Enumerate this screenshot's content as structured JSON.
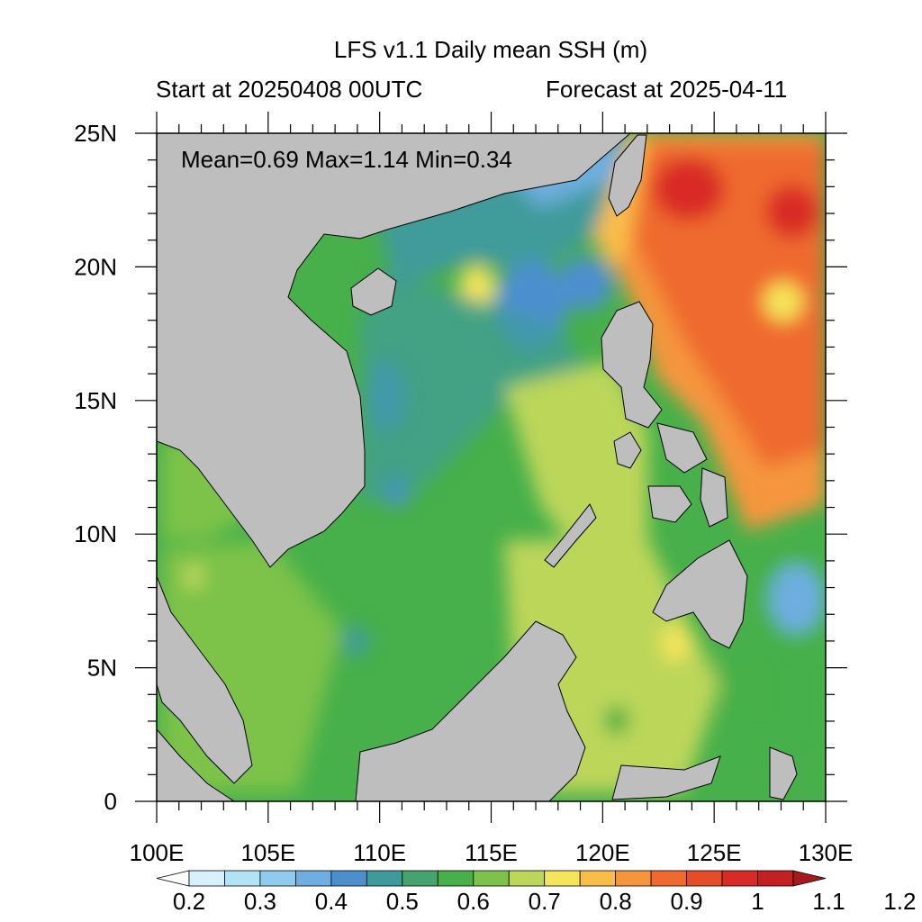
{
  "title": "LFS v1.1 Daily mean SSH (m)",
  "subtitle_left": "Start at 20250408 00UTC",
  "subtitle_right": "Forecast at 2025-04-11",
  "stats": "Mean=0.69  Max=1.14  Min=0.34",
  "map": {
    "lon_range": [
      100,
      130
    ],
    "lat_range": [
      0,
      25
    ],
    "lon_ticks": [
      {
        "value": 100,
        "label": "100E"
      },
      {
        "value": 105,
        "label": "105E"
      },
      {
        "value": 110,
        "label": "110E"
      },
      {
        "value": 115,
        "label": "115E"
      },
      {
        "value": 120,
        "label": "120E"
      },
      {
        "value": 125,
        "label": "125E"
      },
      {
        "value": 130,
        "label": "130E"
      }
    ],
    "lat_ticks": [
      {
        "value": 0,
        "label": "0"
      },
      {
        "value": 5,
        "label": "5N"
      },
      {
        "value": 10,
        "label": "10N"
      },
      {
        "value": 15,
        "label": "15N"
      },
      {
        "value": 20,
        "label": "20N"
      },
      {
        "value": 25,
        "label": "25N"
      }
    ],
    "land_color": "#bebebe",
    "coast_color": "#000000"
  },
  "colorbar": {
    "labels": [
      "0.2",
      "0.3",
      "0.4",
      "0.5",
      "0.6",
      "0.7",
      "0.8",
      "0.9",
      "1",
      "1.1",
      "1.2"
    ],
    "colors": [
      "#ffffff",
      "#d6f1fb",
      "#b2e2f5",
      "#8ecbec",
      "#6eaee0",
      "#4c8fcf",
      "#3f9b9b",
      "#45a46b",
      "#47b04a",
      "#7dc24a",
      "#bcd65a",
      "#f5e55a",
      "#f9bd4a",
      "#f5963d",
      "#ef6a2e",
      "#e44d27",
      "#d92b25",
      "#c41f22",
      "#a51a1c"
    ]
  }
}
